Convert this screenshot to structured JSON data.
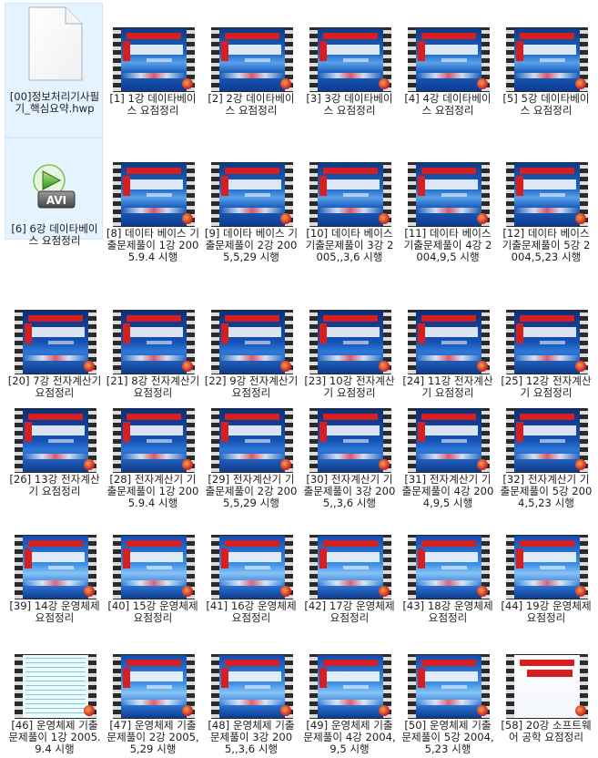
{
  "files": [
    {
      "label": "[00]정보처리기사필기_핵심요약.hwp",
      "kind": "document-icon",
      "selected": true
    },
    {
      "label": "[1] 1강 데이타베이스 요점정리",
      "kind": "db"
    },
    {
      "label": "[2] 2강 데이타베이스 요점정리",
      "kind": "db"
    },
    {
      "label": "[3] 3강 데이타베이스 요점정리",
      "kind": "db"
    },
    {
      "label": "[4] 4강 데이타베이스 요점정리",
      "kind": "db"
    },
    {
      "label": "[5] 5강 데이타베이스 요점정리",
      "kind": "db"
    },
    {
      "label": "[6] 6강 데이타베이스 요점정리",
      "kind": "avi-icon",
      "selected": true
    },
    {
      "label": "[8] 데이타 베이스 기출문제풀이 1강 2005.9.4 시행",
      "kind": "db"
    },
    {
      "label": "[9] 데이타 베이스 기출문제풀이 2강 2005,5,29 시행",
      "kind": "db"
    },
    {
      "label": "[10] 데이타 베이스 기출문제풀이 3강 2005,,3,6 시행",
      "kind": "db"
    },
    {
      "label": "[11] 데이타 베이스 기출문제풀이 4강 2004,9,5 시행",
      "kind": "db"
    },
    {
      "label": "[12] 데이타 베이스 기출문제풀이 5강 2004,5,23 시행",
      "kind": "db"
    },
    {
      "label": "[20] 7강 전자계산기 요점정리",
      "kind": "ec"
    },
    {
      "label": "[21] 8강 전자계산기 요점정리",
      "kind": "ec"
    },
    {
      "label": "[22] 9강 전자계산기 요점정리",
      "kind": "ec"
    },
    {
      "label": "[23] 10강 전자계산기 요점정리",
      "kind": "ec"
    },
    {
      "label": "[24] 11강 전자계산기 요점정리",
      "kind": "ec"
    },
    {
      "label": "[25] 12강 전자계산기 요점정리",
      "kind": "ec"
    },
    {
      "label": "[26] 13강 전자계산기 요점정리",
      "kind": "ec"
    },
    {
      "label": "[28] 전자계산기 기출문제풀이 1강 2005.9.4 시행",
      "kind": "ec"
    },
    {
      "label": "[29] 전자계산기 기출문제풀이 2강 2005,5,29 시행",
      "kind": "ec"
    },
    {
      "label": "[30] 전자계산기 기출문제풀이 3강 2005,,3,6 시행",
      "kind": "ec"
    },
    {
      "label": "[31] 전자계산기 기출문제풀이 4강 2004,9,5 시행",
      "kind": "ec"
    },
    {
      "label": "[32] 전자계산기 기출문제풀이 5강 2004,5,23 시행",
      "kind": "ec"
    },
    {
      "label": "[39] 14강 운영체제 요점정리",
      "kind": "os"
    },
    {
      "label": "[40] 15강 운영체제 요점정리",
      "kind": "os"
    },
    {
      "label": "[41] 16강 운영체제 요점정리",
      "kind": "os"
    },
    {
      "label": "[42] 17강 운영체제 요점정리",
      "kind": "os"
    },
    {
      "label": "[43] 18강 운영체제 요점정리",
      "kind": "os"
    },
    {
      "label": "[44] 19강 운영체제 요점정리",
      "kind": "os"
    },
    {
      "label": "[46] 운영체제 기출문제풀이 1강 2005.9.4 시행",
      "kind": "txt"
    },
    {
      "label": "[47] 운영체제 기출문제풀이 2강 2005,5,29 시행",
      "kind": "os"
    },
    {
      "label": "[48] 운영체제 기출문제풀이 3강 2005,,3,6 시행",
      "kind": "os"
    },
    {
      "label": "[49] 운영체제 기출문제풀이 4강 2004,9,5 시행",
      "kind": "os"
    },
    {
      "label": "[50] 운영체제 기출문제풀이 5강 2004,5,23 시행",
      "kind": "os"
    },
    {
      "label": "[58] 20강 소프트웨어 공학 요점정리",
      "kind": "sw"
    }
  ]
}
